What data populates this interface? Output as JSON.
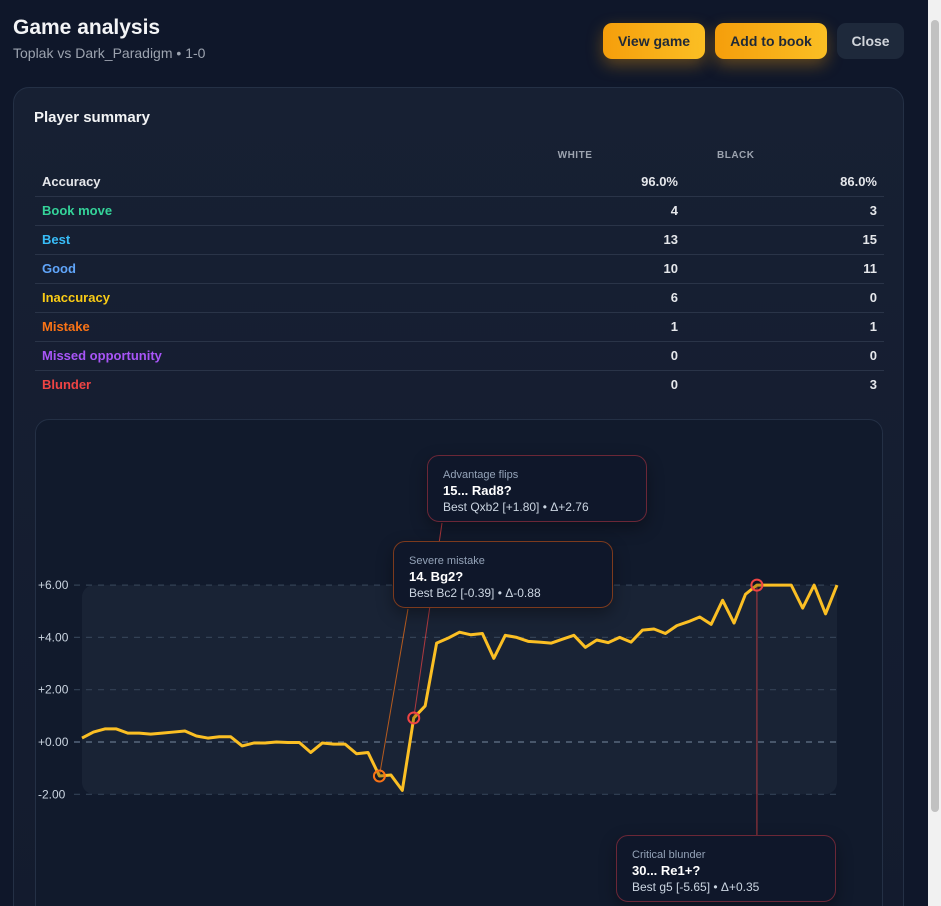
{
  "header": {
    "title": "Game analysis",
    "subtitle": "Toplak vs Dark_Paradigm • 1-0",
    "view_game": "View game",
    "add_to_book": "Add to book",
    "close": "Close"
  },
  "summary": {
    "title": "Player summary",
    "columns": [
      "WHITE",
      "BLACK"
    ],
    "rows": [
      {
        "label": "Accuracy",
        "white": "96.0%",
        "black": "86.0%",
        "color": "#e5e7eb"
      },
      {
        "label": "Book move",
        "white": "4",
        "black": "3",
        "color": "#34d399"
      },
      {
        "label": "Best",
        "white": "13",
        "black": "15",
        "color": "#38bdf8"
      },
      {
        "label": "Good",
        "white": "10",
        "black": "11",
        "color": "#60a5fa"
      },
      {
        "label": "Inaccuracy",
        "white": "6",
        "black": "0",
        "color": "#facc15"
      },
      {
        "label": "Mistake",
        "white": "1",
        "black": "1",
        "color": "#f97316"
      },
      {
        "label": "Missed opportunity",
        "white": "0",
        "black": "0",
        "color": "#a855f7"
      },
      {
        "label": "Blunder",
        "white": "0",
        "black": "3",
        "color": "#ef4444"
      }
    ]
  },
  "chart_data": {
    "type": "line",
    "ylim": [
      -2,
      6
    ],
    "yticks": [
      "+6.00",
      "+4.00",
      "+2.00",
      "+0.00",
      "-2.00"
    ],
    "ytick_values": [
      6,
      4,
      2,
      0,
      -2
    ],
    "line_color": "#fbbf24",
    "values": [
      0.15,
      0.38,
      0.5,
      0.5,
      0.34,
      0.34,
      0.3,
      0.34,
      0.38,
      0.42,
      0.23,
      0.15,
      0.2,
      0.2,
      -0.15,
      -0.04,
      -0.04,
      0,
      -0.02,
      -0.02,
      -0.4,
      -0.04,
      -0.08,
      -0.08,
      -0.45,
      -0.4,
      -1.3,
      -1.26,
      -1.85,
      0.92,
      1.38,
      3.78,
      3.97,
      4.2,
      4.1,
      4.15,
      3.2,
      4.08,
      4.0,
      3.85,
      3.82,
      3.78,
      3.93,
      4.08,
      3.62,
      3.9,
      3.8,
      4.0,
      3.82,
      4.28,
      4.32,
      4.15,
      4.45,
      4.6,
      4.78,
      4.5,
      5.42,
      4.55,
      5.65,
      6.0,
      6.0,
      6.0,
      6.0,
      5.12,
      6.0,
      4.9,
      6.0
    ],
    "annotations": [
      {
        "index": 29,
        "kind": "Advantage flips",
        "move": "15... Rad8?",
        "detail": "Best Qxb2 [+1.80] • Δ+2.76",
        "color": "#ef4444",
        "border": "#6b2737"
      },
      {
        "index": 26,
        "kind": "Severe mistake",
        "move": "14. Bg2?",
        "detail": "Best Bc2 [-0.39] • Δ-0.88",
        "color": "#f97316",
        "border": "#7c3a1d"
      },
      {
        "index": 59,
        "kind": "Critical blunder",
        "move": "30... Re1+?",
        "detail": "Best g5 [-5.65] • Δ+0.35",
        "color": "#ef4444",
        "border": "#6b2737"
      }
    ]
  }
}
